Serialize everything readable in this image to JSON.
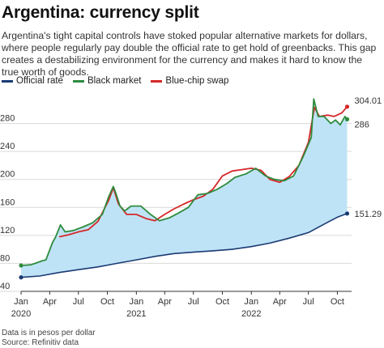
{
  "title": "Argentina: currency split",
  "subtitle": "Argentina's tight capital controls have stoked popular alternative markets for dollars, where people regularly pay double the official rate to get hold of greenbacks. This gap creates a destabilizing environment for the currency and makes it hard to know the true worth of goods.",
  "footnotes": [
    "Data is in pesos per dollar",
    "Source: Refinitiv data"
  ],
  "colors": {
    "official": "#1b3a73",
    "black": "#2e8b3e",
    "bluechip": "#d62728",
    "fill": "#bfe3f6",
    "grid": "#d9d9d9"
  },
  "chart_data": {
    "type": "line",
    "ylim": [
      40,
      320
    ],
    "yticks": [
      40,
      80,
      120,
      160,
      200,
      240,
      280
    ],
    "xdomain": [
      "2020-01-01",
      "2022-11-10"
    ],
    "xticks": [
      {
        "date": "2020-01-01",
        "label": "Jan",
        "year": "2020"
      },
      {
        "date": "2020-04-01",
        "label": "Apr",
        "year": ""
      },
      {
        "date": "2020-07-01",
        "label": "Jul",
        "year": ""
      },
      {
        "date": "2020-10-01",
        "label": "Oct",
        "year": ""
      },
      {
        "date": "2021-01-01",
        "label": "Jan",
        "year": "2021"
      },
      {
        "date": "2021-04-01",
        "label": "Apr",
        "year": ""
      },
      {
        "date": "2021-07-01",
        "label": "Jul",
        "year": ""
      },
      {
        "date": "2021-10-01",
        "label": "Oct",
        "year": ""
      },
      {
        "date": "2022-01-01",
        "label": "Jan",
        "year": "2022"
      },
      {
        "date": "2022-04-01",
        "label": "Apr",
        "year": ""
      },
      {
        "date": "2022-07-01",
        "label": "Jul",
        "year": ""
      },
      {
        "date": "2022-10-01",
        "label": "Oct",
        "year": ""
      }
    ],
    "series": [
      {
        "name": "Official rate",
        "key": "official",
        "end_label": "151.29",
        "points": [
          [
            "2020-01-01",
            60
          ],
          [
            "2020-03-01",
            62
          ],
          [
            "2020-05-01",
            67
          ],
          [
            "2020-07-01",
            71
          ],
          [
            "2020-09-01",
            75
          ],
          [
            "2020-11-01",
            80
          ],
          [
            "2021-01-01",
            85
          ],
          [
            "2021-03-01",
            90
          ],
          [
            "2021-05-01",
            94
          ],
          [
            "2021-07-01",
            96
          ],
          [
            "2021-09-01",
            98
          ],
          [
            "2021-11-01",
            100
          ],
          [
            "2022-01-01",
            104
          ],
          [
            "2022-03-01",
            109
          ],
          [
            "2022-05-01",
            116
          ],
          [
            "2022-07-01",
            124
          ],
          [
            "2022-09-01",
            139
          ],
          [
            "2022-10-01",
            146
          ],
          [
            "2022-11-01",
            151.29
          ]
        ]
      },
      {
        "name": "Black market",
        "key": "black",
        "end_label": "286",
        "points": [
          [
            "2020-01-01",
            77
          ],
          [
            "2020-02-01",
            78
          ],
          [
            "2020-02-15",
            80
          ],
          [
            "2020-03-10",
            84
          ],
          [
            "2020-03-20",
            85
          ],
          [
            "2020-04-10",
            110
          ],
          [
            "2020-04-20",
            118
          ],
          [
            "2020-05-05",
            135
          ],
          [
            "2020-05-20",
            125
          ],
          [
            "2020-06-15",
            127
          ],
          [
            "2020-07-15",
            132
          ],
          [
            "2020-08-15",
            138
          ],
          [
            "2020-09-15",
            150
          ],
          [
            "2020-10-05",
            175
          ],
          [
            "2020-10-20",
            190
          ],
          [
            "2020-10-28",
            180
          ],
          [
            "2020-11-10",
            162
          ],
          [
            "2020-11-25",
            155
          ],
          [
            "2020-12-15",
            162
          ],
          [
            "2021-01-15",
            162
          ],
          [
            "2021-02-15",
            150
          ],
          [
            "2021-03-15",
            141
          ],
          [
            "2021-04-15",
            145
          ],
          [
            "2021-05-15",
            152
          ],
          [
            "2021-06-15",
            160
          ],
          [
            "2021-07-15",
            178
          ],
          [
            "2021-08-15",
            180
          ],
          [
            "2021-09-15",
            186
          ],
          [
            "2021-10-15",
            194
          ],
          [
            "2021-11-10",
            203
          ],
          [
            "2021-12-15",
            208
          ],
          [
            "2022-01-15",
            216
          ],
          [
            "2022-02-15",
            205
          ],
          [
            "2022-03-15",
            200
          ],
          [
            "2022-04-15",
            198
          ],
          [
            "2022-05-15",
            205
          ],
          [
            "2022-06-15",
            233
          ],
          [
            "2022-07-10",
            260
          ],
          [
            "2022-07-18",
            315
          ],
          [
            "2022-08-01",
            290
          ],
          [
            "2022-08-20",
            290
          ],
          [
            "2022-09-10",
            280
          ],
          [
            "2022-09-25",
            285
          ],
          [
            "2022-10-10",
            278
          ],
          [
            "2022-10-25",
            290
          ],
          [
            "2022-11-01",
            286
          ]
        ]
      },
      {
        "name": "Blue-chip swap",
        "key": "bluechip",
        "end_label": "304.01",
        "points": [
          [
            "2020-05-01",
            118
          ],
          [
            "2020-06-01",
            121
          ],
          [
            "2020-07-01",
            125
          ],
          [
            "2020-08-01",
            128
          ],
          [
            "2020-09-01",
            140
          ],
          [
            "2020-10-05",
            170
          ],
          [
            "2020-10-20",
            188
          ],
          [
            "2020-11-05",
            165
          ],
          [
            "2020-12-01",
            150
          ],
          [
            "2021-01-01",
            150
          ],
          [
            "2021-02-01",
            144
          ],
          [
            "2021-03-01",
            141
          ],
          [
            "2021-04-01",
            150
          ],
          [
            "2021-05-01",
            158
          ],
          [
            "2021-06-01",
            165
          ],
          [
            "2021-07-01",
            171
          ],
          [
            "2021-08-01",
            176
          ],
          [
            "2021-09-01",
            186
          ],
          [
            "2021-10-01",
            205
          ],
          [
            "2021-11-01",
            212
          ],
          [
            "2021-12-01",
            214
          ],
          [
            "2022-01-01",
            216
          ],
          [
            "2022-02-01",
            213
          ],
          [
            "2022-03-01",
            200
          ],
          [
            "2022-04-01",
            196
          ],
          [
            "2022-05-01",
            204
          ],
          [
            "2022-06-01",
            220
          ],
          [
            "2022-07-01",
            253
          ],
          [
            "2022-07-20",
            303
          ],
          [
            "2022-08-05",
            290
          ],
          [
            "2022-09-01",
            292
          ],
          [
            "2022-09-20",
            290
          ],
          [
            "2022-10-15",
            295
          ],
          [
            "2022-11-01",
            304.01
          ]
        ]
      }
    ],
    "legend": "top-left",
    "grid": true
  }
}
